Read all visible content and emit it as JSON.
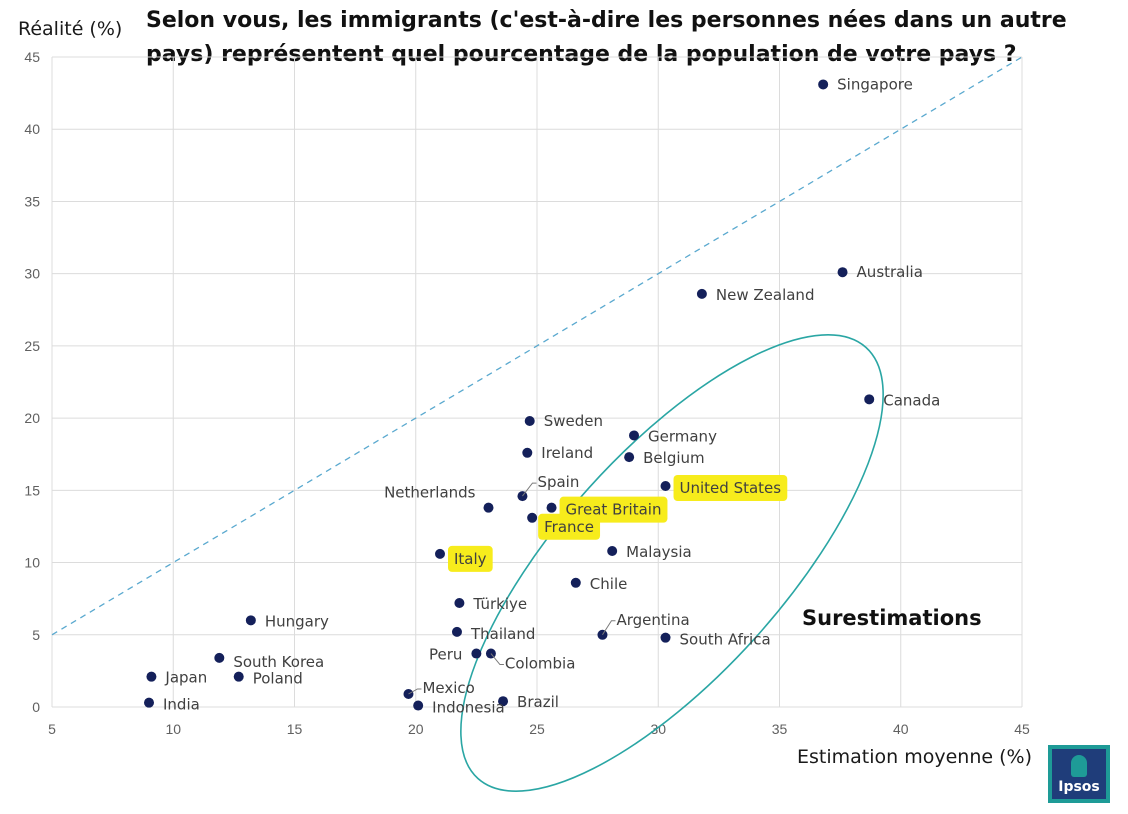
{
  "chart_data": {
    "type": "scatter",
    "title": "Selon vous, les immigrants (c'est-à-dire les personnes nées dans un autre pays) représentent quel pourcentage de la population de votre pays ?",
    "xlabel": "Estimation moyenne (%)",
    "ylabel": "Réalité (%)",
    "xlim": [
      5,
      45
    ],
    "ylim": [
      0,
      45
    ],
    "xticks": [
      5,
      10,
      15,
      20,
      25,
      30,
      35,
      40,
      45
    ],
    "yticks": [
      0,
      5,
      10,
      15,
      20,
      25,
      30,
      35,
      40,
      45
    ],
    "grid": true,
    "reference_line": "y = x",
    "annotation": "Surestimations",
    "highlighted": [
      "United States",
      "Great Britain",
      "France",
      "Italy"
    ],
    "points": [
      {
        "label": "Singapore",
        "x": 36.8,
        "y": 43.1
      },
      {
        "label": "Australia",
        "x": 37.6,
        "y": 30.1
      },
      {
        "label": "New Zealand",
        "x": 31.8,
        "y": 28.6
      },
      {
        "label": "Canada",
        "x": 38.7,
        "y": 21.3
      },
      {
        "label": "Sweden",
        "x": 24.7,
        "y": 19.8
      },
      {
        "label": "Germany",
        "x": 29.0,
        "y": 18.8
      },
      {
        "label": "Ireland",
        "x": 24.6,
        "y": 17.6
      },
      {
        "label": "Belgium",
        "x": 28.8,
        "y": 17.3
      },
      {
        "label": "United States",
        "x": 30.3,
        "y": 15.3
      },
      {
        "label": "Spain",
        "x": 24.4,
        "y": 14.6
      },
      {
        "label": "Netherlands",
        "x": 23.0,
        "y": 13.8
      },
      {
        "label": "Great Britain",
        "x": 25.6,
        "y": 13.8
      },
      {
        "label": "France",
        "x": 24.8,
        "y": 13.1
      },
      {
        "label": "Malaysia",
        "x": 28.1,
        "y": 10.8
      },
      {
        "label": "Italy",
        "x": 21.0,
        "y": 10.6
      },
      {
        "label": "Chile",
        "x": 26.6,
        "y": 8.6
      },
      {
        "label": "Türkiye",
        "x": 21.8,
        "y": 7.2
      },
      {
        "label": "Hungary",
        "x": 13.2,
        "y": 6.0
      },
      {
        "label": "Thailand",
        "x": 21.7,
        "y": 5.2
      },
      {
        "label": "Argentina",
        "x": 27.7,
        "y": 5.0
      },
      {
        "label": "South Africa",
        "x": 30.3,
        "y": 4.8
      },
      {
        "label": "Peru",
        "x": 22.5,
        "y": 3.7
      },
      {
        "label": "Colombia",
        "x": 23.1,
        "y": 3.7
      },
      {
        "label": "South Korea",
        "x": 11.9,
        "y": 3.4
      },
      {
        "label": "Japan",
        "x": 9.1,
        "y": 2.1
      },
      {
        "label": "Poland",
        "x": 12.7,
        "y": 2.1
      },
      {
        "label": "Mexico",
        "x": 19.7,
        "y": 0.9
      },
      {
        "label": "Brazil",
        "x": 23.6,
        "y": 0.4
      },
      {
        "label": "India",
        "x": 9.0,
        "y": 0.3
      },
      {
        "label": "Indonesia",
        "x": 20.1,
        "y": 0.1
      }
    ]
  },
  "logo": {
    "text": "Ipsos"
  }
}
